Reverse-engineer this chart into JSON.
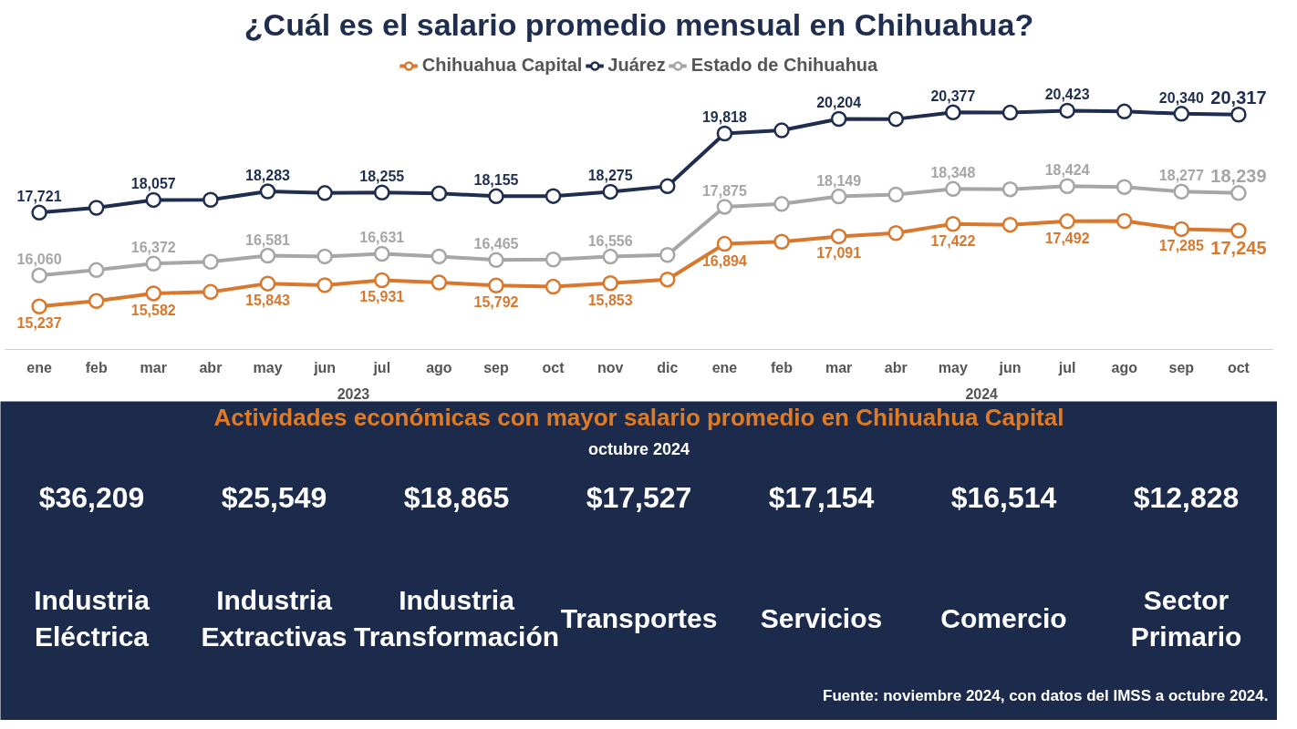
{
  "chart_data": [
    {
      "type": "line",
      "title": "¿Cuál es el salario promedio mensual en Chihuahua?",
      "categories": [
        "ene",
        "feb",
        "mar",
        "abr",
        "may",
        "jun",
        "jul",
        "ago",
        "sep",
        "oct",
        "nov",
        "dic",
        "ene",
        "feb",
        "mar",
        "abr",
        "may",
        "jun",
        "jul",
        "ago",
        "sep",
        "oct"
      ],
      "series": [
        {
          "name": "Chihuahua Capital",
          "color": "#d9782d",
          "values": [
            15237,
            15380,
            15582,
            15620,
            15843,
            15800,
            15931,
            15870,
            15792,
            15760,
            15853,
            15950,
            16894,
            16950,
            17091,
            17180,
            17422,
            17400,
            17492,
            17500,
            17285,
            17245
          ],
          "value_labels": [
            "15,237",
            null,
            "15,582",
            null,
            "15,843",
            null,
            "15,931",
            null,
            "15,792",
            null,
            "15,853",
            null,
            "16,894",
            null,
            "17,091",
            null,
            "17,422",
            null,
            "17,492",
            null,
            "17,285",
            "17,245"
          ]
        },
        {
          "name": "Juárez",
          "color": "#1f2d4f",
          "values": [
            17721,
            17850,
            18057,
            18060,
            18283,
            18240,
            18255,
            18230,
            18155,
            18160,
            18275,
            18420,
            19818,
            19900,
            20204,
            20200,
            20377,
            20370,
            20423,
            20400,
            20340,
            20317
          ],
          "value_labels": [
            "17,721",
            null,
            "18,057",
            null,
            "18,283",
            null,
            "18,255",
            null,
            "18,155",
            null,
            "18,275",
            null,
            "19,818",
            null,
            "20,204",
            null,
            "20,377",
            null,
            "20,423",
            null,
            "20,340",
            "20,317"
          ]
        },
        {
          "name": "Estado de Chihuahua",
          "color": "#a6a6a6",
          "values": [
            16060,
            16200,
            16372,
            16420,
            16581,
            16560,
            16631,
            16560,
            16465,
            16480,
            16556,
            16600,
            17875,
            17950,
            18149,
            18200,
            18348,
            18340,
            18424,
            18400,
            18277,
            18239
          ],
          "value_labels": [
            "16,060",
            null,
            "16,372",
            null,
            "16,581",
            null,
            "16,631",
            null,
            "16,465",
            null,
            "16,556",
            null,
            "17,875",
            null,
            "18,149",
            null,
            "18,348",
            null,
            "18,424",
            null,
            "18,277",
            "18,239"
          ]
        }
      ],
      "marker": "circle",
      "line_style": "solid",
      "legend": "top",
      "grid": false,
      "tick_labels": "x",
      "annotations": [
        "2023",
        "2024"
      ]
    },
    {
      "type": "other",
      "title": "Actividades económicas con mayor salario promedio en Chihuahua Capital",
      "subtitle": "octubre 2024",
      "categories": [
        "Industria Eléctrica",
        "Industria Extractivas",
        "Industria Transformación",
        "Transportes",
        "Servicios",
        "Comercio",
        "Sector Primario"
      ],
      "value_labels": [
        "$36,209",
        "$25,549",
        "$18,865",
        "$17,527",
        "$17,154",
        "$16,514",
        "$12,828"
      ],
      "annotations": [
        "Fuente: noviembre 2024, con datos del IMSS a octubre 2024."
      ]
    }
  ]
}
